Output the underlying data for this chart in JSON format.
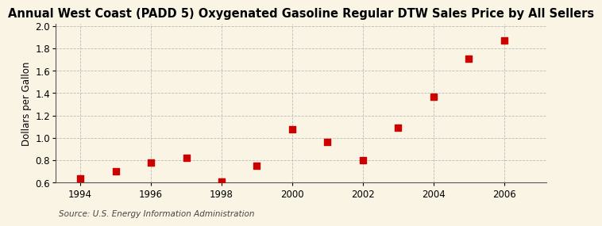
{
  "title": "Annual West Coast (PADD 5) Oxygenated Gasoline Regular DTW Sales Price by All Sellers",
  "xlabel": "",
  "ylabel": "Dollars per Gallon",
  "source": "Source: U.S. Energy Information Administration",
  "background_color": "#faf4e4",
  "x_values": [
    1994,
    1995,
    1996,
    1997,
    1998,
    1999,
    2000,
    2001,
    2002,
    2003,
    2004,
    2005,
    2006
  ],
  "y_values": [
    0.64,
    0.7,
    0.78,
    0.82,
    0.61,
    0.75,
    1.08,
    0.96,
    0.8,
    1.09,
    1.37,
    1.71,
    1.87
  ],
  "marker_color": "#cc0000",
  "marker_size": 28,
  "xlim": [
    1993.3,
    2007.2
  ],
  "ylim": [
    0.6,
    2.02
  ],
  "yticks": [
    0.6,
    0.8,
    1.0,
    1.2,
    1.4,
    1.6,
    1.8,
    2.0
  ],
  "xticks": [
    1994,
    1996,
    1998,
    2000,
    2002,
    2004,
    2006
  ],
  "title_fontsize": 10.5,
  "label_fontsize": 8.5,
  "tick_fontsize": 8.5,
  "source_fontsize": 7.5,
  "grid_color": "#bbbbbb",
  "grid_linestyle": "--",
  "grid_linewidth": 0.6
}
